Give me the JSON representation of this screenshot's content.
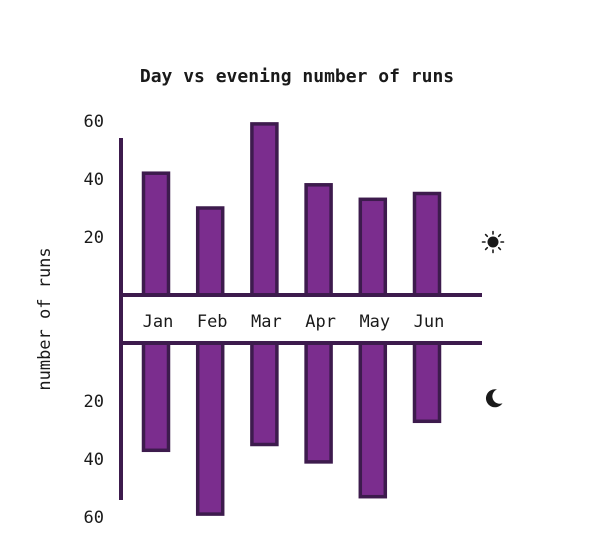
{
  "chart_data": {
    "type": "bar",
    "title": "Day vs evening number of runs",
    "ylabel": "number of runs",
    "categories": [
      "Jan",
      "Feb",
      "Mar",
      "Apr",
      "May",
      "Jun"
    ],
    "series": [
      {
        "icon": "sun-icon",
        "values": [
          42,
          30,
          59,
          38,
          33,
          35
        ]
      },
      {
        "icon": "moon-icon",
        "values": [
          37,
          59,
          35,
          41,
          53,
          27
        ]
      }
    ],
    "ytick_labels": [
      "20",
      "40",
      "60"
    ],
    "ylim": [
      0,
      60
    ],
    "colors": {
      "bar": "#7b2d8e",
      "stroke": "#3d1b4d",
      "text": "#1a1a1a"
    }
  }
}
